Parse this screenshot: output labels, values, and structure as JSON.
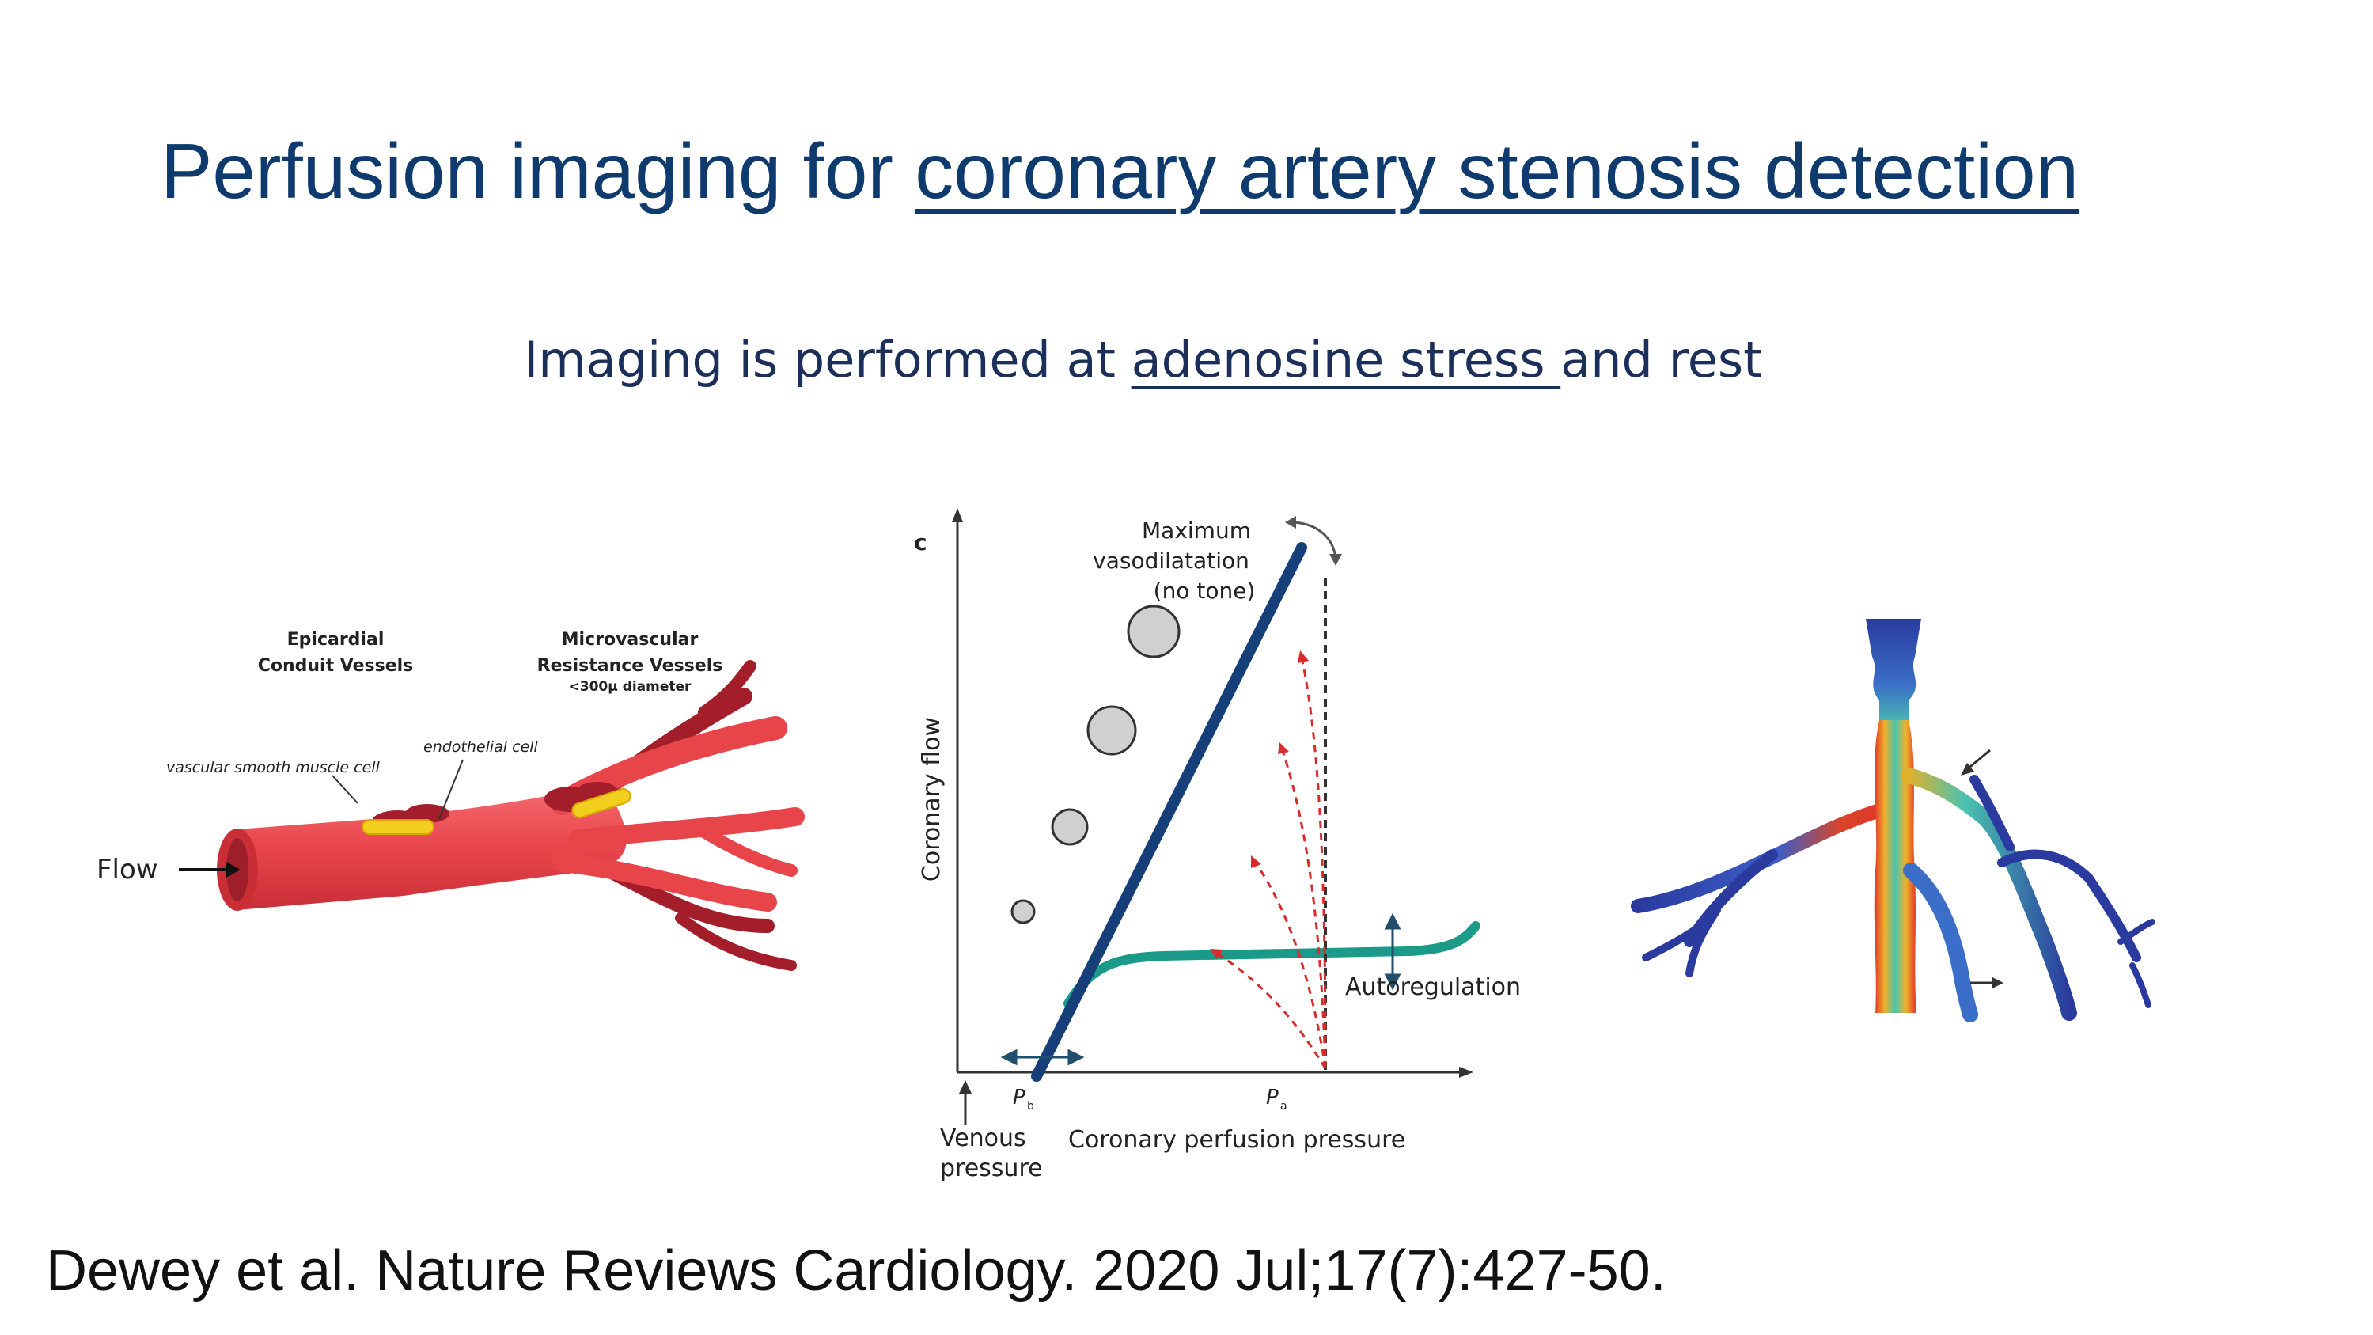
{
  "slide": {
    "title_plain": "Perfusion imaging for ",
    "title_underlined": "coronary artery stenosis detection",
    "subtitle_plain": "Imaging is performed at ",
    "subtitle_underlined": "adenosine stress ",
    "subtitle_end": "and rest",
    "citation": "Dewey et al. Nature Reviews Cardiology. 2020 Jul;17(7):427-50."
  },
  "left_figure": {
    "label_epicardial_1": "Epicardial",
    "label_epicardial_2": "Conduit Vessels",
    "label_micro_1": "Microvascular",
    "label_micro_2": "Resistance Vessels",
    "label_micro_3": "<300µ diameter",
    "label_endothelial": "endothelial cell",
    "label_smooth_muscle": "vascular smooth muscle cell",
    "label_flow": "Flow",
    "colors": {
      "vessel": "#e8454b",
      "vessel_dark": "#a41d2a",
      "endothelial": "#f2cf1f"
    }
  },
  "center_figure": {
    "panel_letter": "c",
    "label_max_1": "Maximum",
    "label_max_2": "vasodilatation",
    "label_max_3": "(no tone)",
    "label_autoregulation": "Autoregulation",
    "label_ylabel": "Coronary flow",
    "label_xlabel": "Coronary perfusion pressure",
    "label_pb": "P",
    "label_pb_sub": "b",
    "label_pa": "P",
    "label_pa_sub": "a",
    "label_venous_1": "Venous",
    "label_venous_2": "pressure",
    "colors": {
      "max_line": "#163f7a",
      "autoreg": "#1b9a8a",
      "arrows": "#d92b2b"
    }
  },
  "right_figure": {
    "colors": {
      "low": "#2a3a9e",
      "mid": "#4ac3b0",
      "high": "#e0332b"
    }
  }
}
